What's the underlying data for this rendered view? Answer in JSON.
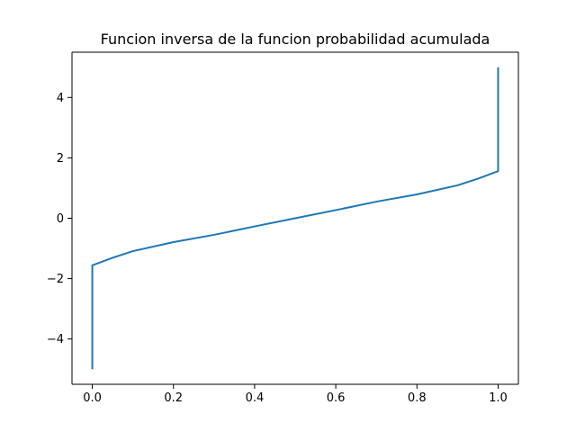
{
  "chart_data": {
    "type": "line",
    "title": "Funcion inversa de la funcion probabilidad acumulada",
    "xlabel": "",
    "ylabel": "",
    "xlim": [
      -0.05,
      1.05
    ],
    "ylim": [
      -5.5,
      5.5
    ],
    "x_ticks": [
      0.0,
      0.2,
      0.4,
      0.6,
      0.8,
      1.0
    ],
    "x_tick_labels": [
      "0.0",
      "0.2",
      "0.4",
      "0.6",
      "0.8",
      "1.0"
    ],
    "y_ticks": [
      -4,
      -2,
      0,
      2,
      4
    ],
    "y_tick_labels": [
      "−4",
      "−2",
      "0",
      "2",
      "4"
    ],
    "grid": false,
    "series": [
      {
        "color": "#1f77b4",
        "x": [
          0.0,
          0.0,
          0.05,
          0.1,
          0.2,
          0.3,
          0.4,
          0.5,
          0.6,
          0.7,
          0.8,
          0.9,
          0.95,
          1.0,
          1.0
        ],
        "y": [
          -5.0,
          -1.56,
          -1.31,
          -1.09,
          -0.79,
          -0.55,
          -0.27,
          0.0,
          0.27,
          0.55,
          0.79,
          1.09,
          1.31,
          1.56,
          5.0
        ]
      }
    ]
  }
}
